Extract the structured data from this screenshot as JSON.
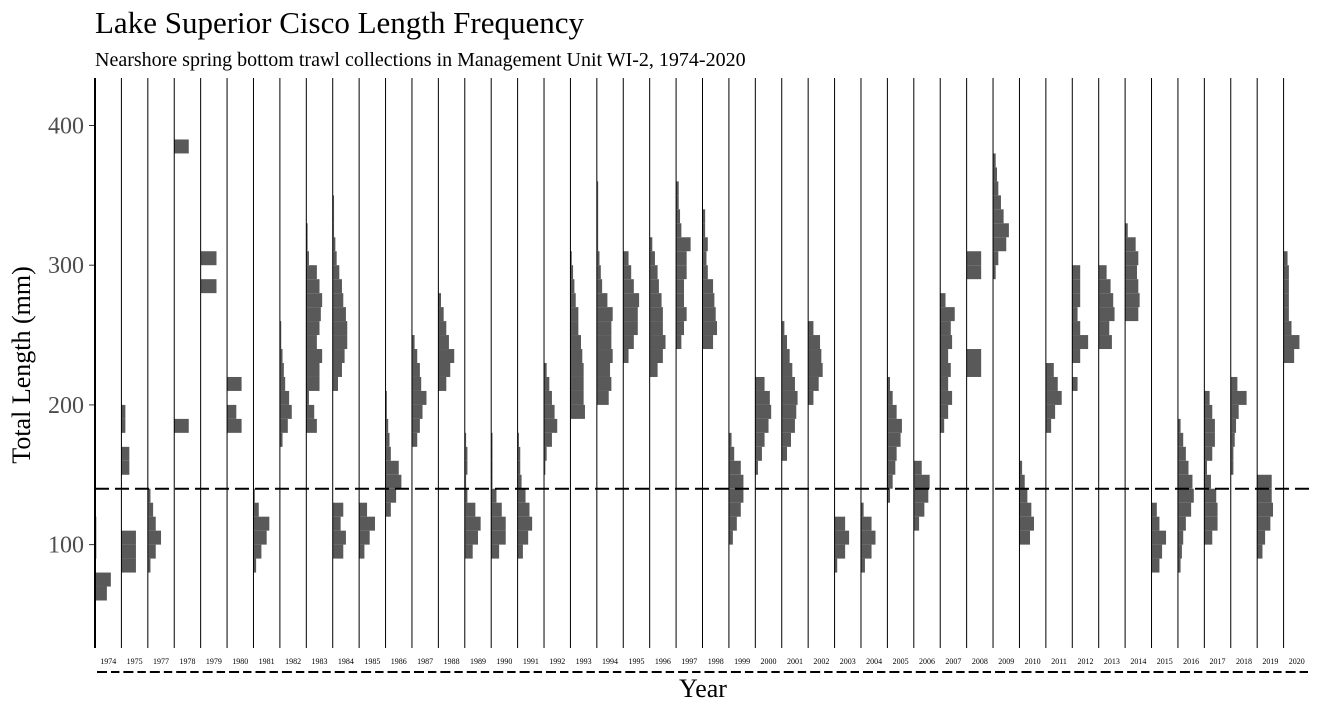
{
  "chart_data": {
    "type": "histogram-panels",
    "title": "Lake Superior Cisco Length Frequency",
    "subtitle": "Nearshore spring bottom trawl collections in Management Unit WI-2, 1974-2020",
    "x_label": "Year",
    "y_label": "Total Length (mm)",
    "ylim": [
      26,
      434
    ],
    "yticks": [
      100,
      200,
      300,
      400
    ],
    "xlim": [
      0,
      1
    ],
    "hline": 140,
    "color": "#595959",
    "panels": [
      {
        "name": "1974",
        "bins": [
          60,
          70,
          80,
          90,
          100,
          110,
          120
        ],
        "values": [
          0.45,
          0.6,
          0,
          0.05,
          0.05,
          0.05
        ]
      },
      {
        "name": "1975",
        "bins": [
          80,
          90,
          100,
          110,
          120,
          130,
          140,
          150,
          160,
          170,
          180,
          190,
          200
        ],
        "values": [
          0.55,
          0.55,
          0.55,
          0,
          0,
          0,
          0,
          0.3,
          0.3,
          0,
          0.15,
          0.15
        ]
      },
      {
        "name": "1977",
        "bins": [
          80,
          90,
          100,
          110,
          120,
          130,
          140
        ],
        "values": [
          0.1,
          0.3,
          0.5,
          0.3,
          0.2,
          0.1
        ]
      },
      {
        "name": "1978",
        "bins": [
          180,
          190,
          200,
          210,
          220,
          230,
          240,
          250,
          260,
          270,
          280,
          290,
          300,
          310,
          320,
          330,
          340,
          350,
          360,
          370,
          380,
          390
        ],
        "values": [
          0.55,
          0,
          0,
          0,
          0,
          0,
          0,
          0,
          0,
          0,
          0,
          0,
          0,
          0,
          0,
          0,
          0,
          0,
          0,
          0,
          0.55
        ]
      },
      {
        "name": "1979",
        "bins": [
          280,
          290,
          300,
          310
        ],
        "values": [
          0.6,
          0,
          0.6
        ]
      },
      {
        "name": "1980",
        "bins": [
          180,
          190,
          200,
          210,
          220
        ],
        "values": [
          0.55,
          0.35,
          0,
          0.55
        ]
      },
      {
        "name": "1981",
        "bins": [
          80,
          90,
          100,
          110,
          120,
          130,
          140
        ],
        "values": [
          0.1,
          0.3,
          0.5,
          0.6,
          0.2,
          0.05
        ]
      },
      {
        "name": "1982",
        "bins": [
          170,
          180,
          190,
          200,
          210,
          220,
          230,
          240,
          250,
          260
        ],
        "values": [
          0.1,
          0.3,
          0.45,
          0.35,
          0.2,
          0.15,
          0.1,
          0.05,
          0.05
        ]
      },
      {
        "name": "1983",
        "bins": [
          180,
          190,
          200,
          210,
          220,
          230,
          240,
          250,
          260,
          270,
          280,
          290,
          300,
          310,
          320,
          330
        ],
        "values": [
          0.4,
          0.3,
          0.1,
          0.5,
          0.5,
          0.6,
          0.4,
          0.5,
          0.55,
          0.6,
          0.5,
          0.4,
          0.1,
          0.05,
          0.05
        ]
      },
      {
        "name": "1984",
        "bins": [
          90,
          100,
          110,
          120,
          130,
          140,
          150,
          160,
          170,
          180,
          190,
          200,
          210,
          220,
          230,
          240,
          250,
          260,
          270,
          280,
          290,
          300,
          310,
          320,
          330,
          340,
          350
        ],
        "values": [
          0.4,
          0.5,
          0.3,
          0.4,
          0,
          0,
          0,
          0,
          0,
          0,
          0,
          0,
          0.2,
          0.35,
          0.45,
          0.55,
          0.55,
          0.5,
          0.4,
          0.35,
          0.25,
          0.15,
          0.1,
          0.05,
          0.05,
          0.05
        ]
      },
      {
        "name": "1985",
        "bins": [
          90,
          100,
          110,
          120,
          130
        ],
        "values": [
          0.2,
          0.4,
          0.6,
          0.3
        ]
      },
      {
        "name": "1986",
        "bins": [
          120,
          130,
          140,
          150,
          160,
          170,
          180,
          190,
          200,
          210
        ],
        "values": [
          0.2,
          0.4,
          0.6,
          0.5,
          0.2,
          0.15,
          0.1,
          0.05,
          0.05
        ]
      },
      {
        "name": "1987",
        "bins": [
          170,
          180,
          190,
          200,
          210,
          220,
          230,
          240,
          250
        ],
        "values": [
          0.2,
          0.3,
          0.4,
          0.55,
          0.35,
          0.3,
          0.2,
          0.1
        ]
      },
      {
        "name": "1988",
        "bins": [
          210,
          220,
          230,
          240,
          250,
          260,
          270,
          280
        ],
        "values": [
          0.3,
          0.45,
          0.6,
          0.4,
          0.3,
          0.2,
          0.1
        ]
      },
      {
        "name": "1989",
        "bins": [
          90,
          100,
          110,
          120,
          130,
          140,
          150,
          160,
          170,
          180
        ],
        "values": [
          0.3,
          0.5,
          0.6,
          0.4,
          0.1,
          0.05,
          0.1,
          0.1,
          0.05
        ]
      },
      {
        "name": "1990",
        "bins": [
          90,
          100,
          110,
          120,
          130,
          140,
          150,
          160,
          170,
          180
        ],
        "values": [
          0.3,
          0.55,
          0.55,
          0.4,
          0.2,
          0.05,
          0.05,
          0.05,
          0.05
        ]
      },
      {
        "name": "1991",
        "bins": [
          90,
          100,
          110,
          120,
          130,
          140,
          150,
          160,
          170,
          180
        ],
        "values": [
          0.2,
          0.4,
          0.55,
          0.45,
          0.3,
          0.15,
          0.1,
          0.1,
          0.05
        ]
      },
      {
        "name": "1992",
        "bins": [
          150,
          160,
          170,
          180,
          190,
          200,
          210,
          220,
          230
        ],
        "values": [
          0.05,
          0.1,
          0.3,
          0.5,
          0.4,
          0.3,
          0.2,
          0.1
        ]
      },
      {
        "name": "1993",
        "bins": [
          190,
          200,
          210,
          220,
          230,
          240,
          250,
          260,
          270,
          280,
          290,
          300,
          310
        ],
        "values": [
          0.55,
          0.5,
          0.5,
          0.5,
          0.45,
          0.4,
          0.3,
          0.3,
          0.2,
          0.15,
          0.1,
          0.05
        ]
      },
      {
        "name": "1994",
        "bins": [
          200,
          210,
          220,
          230,
          240,
          250,
          260,
          270,
          280,
          290,
          300,
          310,
          320,
          330,
          340,
          350,
          360
        ],
        "values": [
          0.45,
          0.55,
          0.5,
          0.6,
          0.55,
          0.55,
          0.6,
          0.4,
          0.2,
          0.15,
          0.1,
          0.05,
          0.05,
          0.05,
          0.05,
          0.05
        ]
      },
      {
        "name": "1995",
        "bins": [
          230,
          240,
          250,
          260,
          270,
          280,
          290,
          300,
          310
        ],
        "values": [
          0.2,
          0.4,
          0.55,
          0.55,
          0.6,
          0.4,
          0.3,
          0.2
        ]
      },
      {
        "name": "1996",
        "bins": [
          220,
          230,
          240,
          250,
          260,
          270,
          280,
          290,
          300,
          310,
          320
        ],
        "values": [
          0.3,
          0.5,
          0.6,
          0.5,
          0.5,
          0.45,
          0.35,
          0.3,
          0.2,
          0.1
        ]
      },
      {
        "name": "1997",
        "bins": [
          240,
          250,
          260,
          270,
          280,
          290,
          300,
          310,
          320,
          330,
          340,
          350,
          360
        ],
        "values": [
          0.2,
          0.3,
          0.4,
          0.3,
          0.3,
          0.4,
          0.4,
          0.55,
          0.2,
          0.15,
          0.1,
          0.1
        ]
      },
      {
        "name": "1998",
        "bins": [
          240,
          250,
          260,
          270,
          280,
          290,
          300,
          310,
          320,
          330,
          340
        ],
        "values": [
          0.4,
          0.55,
          0.5,
          0.45,
          0.4,
          0.2,
          0.15,
          0.2,
          0.1,
          0.1
        ]
      },
      {
        "name": "1999",
        "bins": [
          100,
          110,
          120,
          130,
          140,
          150,
          160,
          170,
          180
        ],
        "values": [
          0.15,
          0.3,
          0.45,
          0.55,
          0.55,
          0.45,
          0.2,
          0.1
        ]
      },
      {
        "name": "2000",
        "bins": [
          150,
          160,
          170,
          180,
          190,
          200,
          210,
          220
        ],
        "values": [
          0.1,
          0.25,
          0.35,
          0.5,
          0.6,
          0.55,
          0.35
        ]
      },
      {
        "name": "2001",
        "bins": [
          160,
          170,
          180,
          190,
          200,
          210,
          220,
          230,
          240,
          250,
          260
        ],
        "values": [
          0.2,
          0.35,
          0.5,
          0.55,
          0.6,
          0.5,
          0.4,
          0.3,
          0.2,
          0.1
        ]
      },
      {
        "name": "2002",
        "bins": [
          200,
          210,
          220,
          230,
          240,
          250,
          260
        ],
        "values": [
          0.2,
          0.4,
          0.55,
          0.5,
          0.45,
          0.2
        ]
      },
      {
        "name": "2003",
        "bins": [
          80,
          90,
          100,
          110,
          120
        ],
        "values": [
          0.1,
          0.4,
          0.55,
          0.4
        ]
      },
      {
        "name": "2004",
        "bins": [
          80,
          90,
          100,
          110,
          120,
          130
        ],
        "values": [
          0.15,
          0.4,
          0.55,
          0.4,
          0.1
        ]
      },
      {
        "name": "2005",
        "bins": [
          130,
          140,
          150,
          160,
          170,
          180,
          190,
          200,
          210,
          220
        ],
        "values": [
          0.1,
          0.2,
          0.3,
          0.35,
          0.5,
          0.55,
          0.35,
          0.2,
          0.1
        ]
      },
      {
        "name": "2006",
        "bins": [
          110,
          120,
          130,
          140,
          150,
          160
        ],
        "values": [
          0.2,
          0.4,
          0.55,
          0.6,
          0.3
        ]
      },
      {
        "name": "2007",
        "bins": [
          180,
          190,
          200,
          210,
          220,
          230,
          240,
          250,
          260,
          270,
          280
        ],
        "values": [
          0.15,
          0.3,
          0.45,
          0.3,
          0.4,
          0.3,
          0.45,
          0.4,
          0.55,
          0.2
        ]
      },
      {
        "name": "2008",
        "bins": [
          220,
          230,
          240,
          250,
          260,
          270,
          280,
          290,
          300,
          310
        ],
        "values": [
          0.55,
          0.55,
          0,
          0,
          0,
          0,
          0,
          0.55,
          0.55
        ]
      },
      {
        "name": "2009",
        "bins": [
          290,
          300,
          310,
          320,
          330,
          340,
          350,
          360,
          370,
          380
        ],
        "values": [
          0.1,
          0.2,
          0.5,
          0.6,
          0.4,
          0.3,
          0.2,
          0.15,
          0.1
        ]
      },
      {
        "name": "2010",
        "bins": [
          100,
          110,
          120,
          130,
          140,
          150,
          160
        ],
        "values": [
          0.4,
          0.55,
          0.45,
          0.3,
          0.2,
          0.1
        ]
      },
      {
        "name": "2011",
        "bins": [
          180,
          190,
          200,
          210,
          220,
          230
        ],
        "values": [
          0.2,
          0.35,
          0.6,
          0.45,
          0.3
        ]
      },
      {
        "name": "2012",
        "bins": [
          210,
          220,
          230,
          240,
          250,
          260,
          270,
          280,
          290,
          300
        ],
        "values": [
          0.2,
          0,
          0.3,
          0.6,
          0.3,
          0.2,
          0.3,
          0.3,
          0.3
        ]
      },
      {
        "name": "2013",
        "bins": [
          240,
          250,
          260,
          270,
          280,
          290,
          300
        ],
        "values": [
          0.5,
          0.4,
          0.6,
          0.55,
          0.45,
          0.3
        ]
      },
      {
        "name": "2014",
        "bins": [
          260,
          270,
          280,
          290,
          300,
          310,
          320,
          330
        ],
        "values": [
          0.5,
          0.55,
          0.5,
          0.45,
          0.5,
          0.4,
          0.1
        ]
      },
      {
        "name": "2015",
        "bins": [
          80,
          90,
          100,
          110,
          120,
          130
        ],
        "values": [
          0.3,
          0.4,
          0.55,
          0.3,
          0.2
        ]
      },
      {
        "name": "2016",
        "bins": [
          80,
          90,
          100,
          110,
          120,
          130,
          140,
          150,
          160,
          170,
          180,
          190
        ],
        "values": [
          0.1,
          0.15,
          0.2,
          0.3,
          0.5,
          0.6,
          0.55,
          0.4,
          0.3,
          0.2,
          0.1
        ]
      },
      {
        "name": "2017",
        "bins": [
          100,
          110,
          120,
          130,
          140,
          150,
          160,
          170,
          180,
          190,
          200,
          210
        ],
        "values": [
          0.3,
          0.5,
          0.5,
          0.45,
          0.25,
          0.1,
          0.3,
          0.4,
          0.4,
          0.3,
          0.2
        ]
      },
      {
        "name": "2018",
        "bins": [
          150,
          160,
          170,
          180,
          190,
          200,
          210,
          220
        ],
        "values": [
          0.1,
          0.1,
          0.15,
          0.2,
          0.3,
          0.6,
          0.25
        ]
      },
      {
        "name": "2019",
        "bins": [
          90,
          100,
          110,
          120,
          130,
          140,
          150
        ],
        "values": [
          0.2,
          0.3,
          0.5,
          0.6,
          0.55,
          0.55
        ]
      },
      {
        "name": "2020",
        "bins": [
          230,
          240,
          250,
          260,
          270,
          280,
          290,
          300,
          310
        ],
        "values": [
          0.4,
          0.6,
          0.3,
          0.2,
          0.2,
          0.2,
          0.2,
          0.15
        ]
      }
    ]
  }
}
